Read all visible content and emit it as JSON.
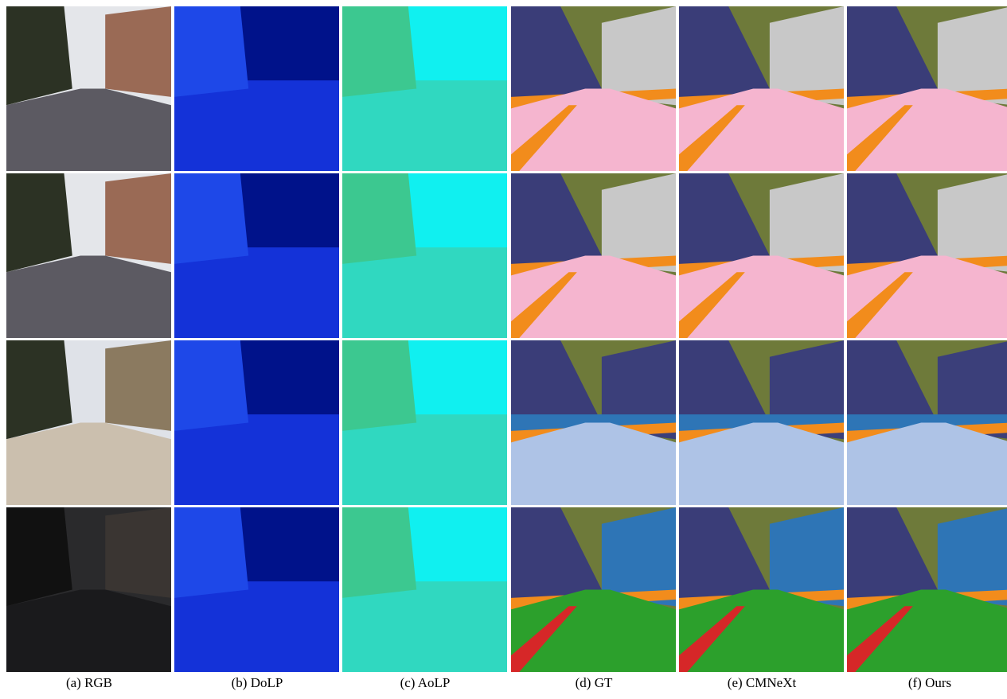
{
  "captions": [
    "(a) RGB",
    "(b) DoLP",
    "(c) AoLP",
    "(d) GT",
    "(e) CMNeXt",
    "(f) Ours"
  ]
}
